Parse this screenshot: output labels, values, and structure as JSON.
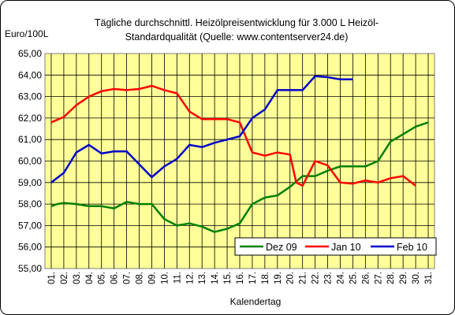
{
  "chart_data": {
    "type": "line",
    "title": [
      "Tägliche durchschnittl. Heizölpreisentwicklung für 3.000 L Heizöl-",
      "Standardqualität (Quelle: www.contentserver24.de)"
    ],
    "ylabel": "Euro/100L",
    "xlabel": "Kalendertag",
    "ylim": [
      55,
      65
    ],
    "yticks": [
      "55,00",
      "56,00",
      "57,00",
      "58,00",
      "59,00",
      "60,00",
      "61,00",
      "62,00",
      "63,00",
      "64,00",
      "65,00"
    ],
    "categories": [
      "01.",
      "02.",
      "03.",
      "04.",
      "05.",
      "06.",
      "07.",
      "08.",
      "09.",
      "10.",
      "11.",
      "12.",
      "13.",
      "14.",
      "15.",
      "16.",
      "17.",
      "18.",
      "19.",
      "20.",
      "21.",
      "22.",
      "23.",
      "24.",
      "25.",
      "26.",
      "27.",
      "28.",
      "29.",
      "30.",
      "31."
    ],
    "grid": true,
    "legend_position": "bottom-right",
    "plot_background": "#ffff99",
    "series": [
      {
        "name": "Dez 09",
        "color": "#008000",
        "x": [
          1,
          1.5,
          2,
          3,
          4,
          5,
          6,
          7,
          7.5,
          8,
          9,
          10,
          11,
          12,
          13,
          14,
          15,
          16,
          17,
          18,
          19,
          20,
          21,
          22,
          23,
          24,
          25,
          26,
          27,
          28,
          29,
          30,
          31
        ],
        "values": [
          57.9,
          58.0,
          58.05,
          58.0,
          57.9,
          57.9,
          57.8,
          58.1,
          58.05,
          58.0,
          58.0,
          57.3,
          57.0,
          57.1,
          56.95,
          56.7,
          56.85,
          57.1,
          58.0,
          58.3,
          58.4,
          58.8,
          59.3,
          59.3,
          59.55,
          59.75,
          59.75,
          59.75,
          60.0,
          60.9,
          61.25,
          61.6,
          61.8
        ]
      },
      {
        "name": "Jan 10",
        "color": "#ff0000",
        "x": [
          1,
          2,
          3,
          4,
          5,
          6,
          7,
          8,
          9,
          10,
          11,
          12,
          13,
          14,
          15,
          16,
          17,
          18,
          19,
          20,
          20.5,
          21,
          22,
          23,
          24,
          25,
          26,
          27,
          28,
          29,
          30
        ],
        "values": [
          61.8,
          62.05,
          62.6,
          63.0,
          63.25,
          63.35,
          63.3,
          63.35,
          63.5,
          63.3,
          63.15,
          62.3,
          61.95,
          61.95,
          61.95,
          61.8,
          60.4,
          60.25,
          60.4,
          60.3,
          59.0,
          58.85,
          60.0,
          59.8,
          59.0,
          58.95,
          59.1,
          59.0,
          59.2,
          59.3,
          58.85
        ]
      },
      {
        "name": "Feb 10",
        "color": "#0000cc",
        "x": [
          1,
          2,
          3,
          4,
          5,
          6,
          7,
          8,
          9,
          10,
          11,
          12,
          13,
          14,
          15,
          16,
          17,
          18,
          19,
          20,
          21,
          22,
          23,
          24,
          25
        ],
        "values": [
          59.0,
          59.45,
          60.4,
          60.75,
          60.35,
          60.45,
          60.45,
          59.85,
          59.25,
          59.75,
          60.1,
          60.75,
          60.65,
          60.85,
          61.0,
          61.15,
          62.0,
          62.4,
          63.3,
          63.3,
          63.3,
          63.95,
          63.9,
          63.8,
          63.8
        ]
      }
    ]
  }
}
